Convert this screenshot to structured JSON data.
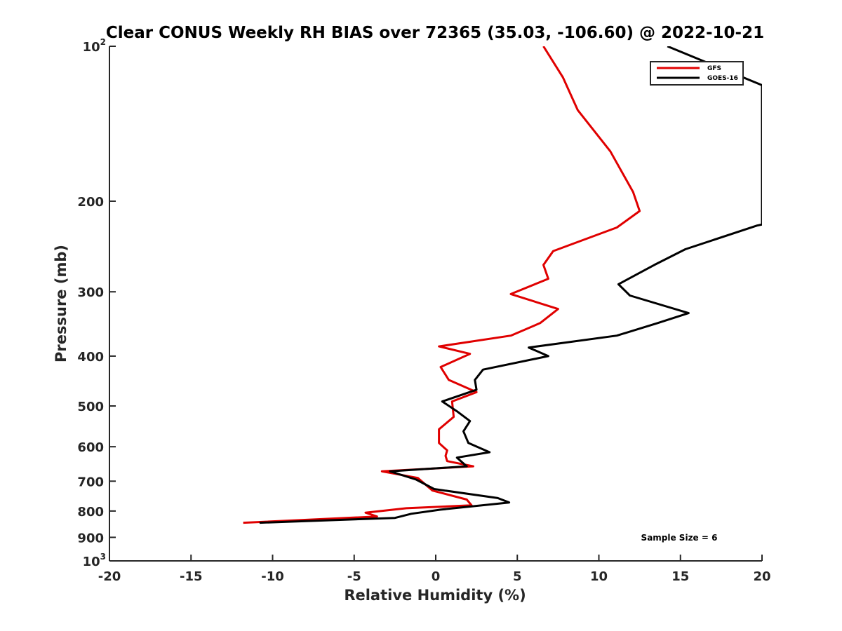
{
  "chart_data": {
    "type": "line",
    "title": "Clear CONUS Weekly RH BIAS over 72365 (35.03, -106.60) @ 2022-10-21",
    "xlabel": "Relative Humidity (%)",
    "ylabel": "Pressure (mb)",
    "xlim": [
      -20,
      20
    ],
    "ylim": [
      100,
      1000
    ],
    "y_scale": "log",
    "y_reversed": true,
    "x_ticks": [
      "-20",
      "-15",
      "-10",
      "-5",
      "0",
      "5",
      "10",
      "15",
      "20"
    ],
    "y_ticks": [
      {
        "value": 100,
        "label": "10",
        "sup": "2"
      },
      {
        "value": 200,
        "label": "200"
      },
      {
        "value": 300,
        "label": "300"
      },
      {
        "value": 400,
        "label": "400"
      },
      {
        "value": 500,
        "label": "500"
      },
      {
        "value": 600,
        "label": "600"
      },
      {
        "value": 700,
        "label": "700"
      },
      {
        "value": 800,
        "label": "800"
      },
      {
        "value": 900,
        "label": "900"
      },
      {
        "value": 1000,
        "label": "10",
        "sup": "3"
      }
    ],
    "legend_position": "top-right",
    "annotation": "Sample Size = 6",
    "series": [
      {
        "name": "GFS",
        "color": "#e00000",
        "points": [
          [
            6.6,
            100
          ],
          [
            7.8,
            115
          ],
          [
            8.7,
            133
          ],
          [
            10.7,
            160
          ],
          [
            12.1,
            192
          ],
          [
            12.5,
            209
          ],
          [
            11.1,
            225
          ],
          [
            7.2,
            250
          ],
          [
            6.6,
            266
          ],
          [
            6.9,
            283
          ],
          [
            4.6,
            303
          ],
          [
            7.5,
            324
          ],
          [
            6.4,
            345
          ],
          [
            4.6,
            365
          ],
          [
            0.2,
            383
          ],
          [
            2.1,
            396
          ],
          [
            0.3,
            420
          ],
          [
            0.8,
            445
          ],
          [
            2.5,
            470
          ],
          [
            1.0,
            490
          ],
          [
            1.1,
            525
          ],
          [
            0.2,
            555
          ],
          [
            0.2,
            590
          ],
          [
            0.7,
            610
          ],
          [
            0.6,
            625
          ],
          [
            0.7,
            640
          ],
          [
            2.3,
            655
          ],
          [
            -3.3,
            670
          ],
          [
            -1.1,
            690
          ],
          [
            -0.2,
            730
          ],
          [
            1.9,
            760
          ],
          [
            2.2,
            780
          ],
          [
            -1.8,
            790
          ],
          [
            -4.3,
            806
          ],
          [
            -3.6,
            820
          ],
          [
            -11.8,
            843
          ]
        ]
      },
      {
        "name": "GOES-16",
        "color": "#000000",
        "points": [
          [
            14.2,
            100
          ],
          [
            20.0,
            119
          ],
          [
            20.0,
            222
          ],
          [
            19.7,
            223
          ],
          [
            15.3,
            248
          ],
          [
            13.4,
            266
          ],
          [
            11.2,
            290
          ],
          [
            11.9,
            305
          ],
          [
            15.5,
            330
          ],
          [
            13.6,
            345
          ],
          [
            11.1,
            365
          ],
          [
            5.7,
            385
          ],
          [
            6.9,
            400
          ],
          [
            2.9,
            425
          ],
          [
            2.4,
            445
          ],
          [
            2.5,
            465
          ],
          [
            0.4,
            490
          ],
          [
            1.3,
            512
          ],
          [
            2.1,
            535
          ],
          [
            1.7,
            560
          ],
          [
            2.0,
            590
          ],
          [
            3.3,
            615
          ],
          [
            1.3,
            630
          ],
          [
            1.9,
            655
          ],
          [
            -2.8,
            670
          ],
          [
            -1.2,
            695
          ],
          [
            -0.1,
            725
          ],
          [
            3.8,
            755
          ],
          [
            4.5,
            770
          ],
          [
            0.3,
            795
          ],
          [
            -1.5,
            810
          ],
          [
            -2.5,
            825
          ],
          [
            -10.8,
            843
          ]
        ]
      }
    ]
  }
}
